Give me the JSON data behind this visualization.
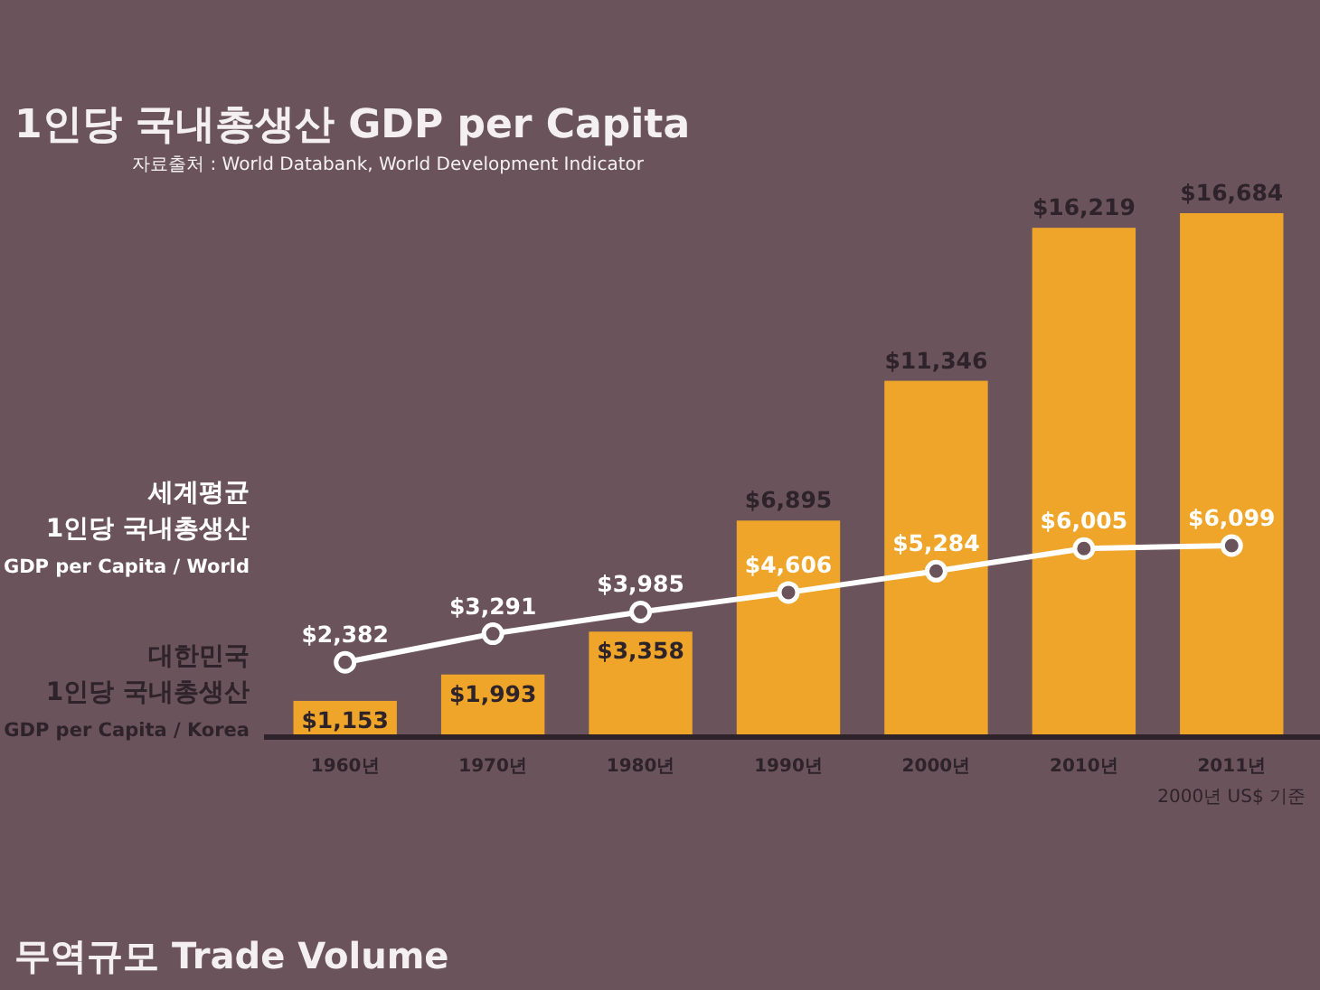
{
  "chart_data": {
    "type": "bar",
    "title": "1인당 국내총생산 GDP per Capita",
    "subtitle": "자료출처 : World Databank, World Development Indicator",
    "categories": [
      "1960년",
      "1970년",
      "1980년",
      "1990년",
      "2000년",
      "2010년",
      "2011년"
    ],
    "series": [
      {
        "name": "대한민국\n1인당 국내총생산\nGDP per Capita / Korea",
        "color": "#eea52a",
        "values": [
          1153,
          1993,
          3358,
          6895,
          11346,
          16219,
          16684
        ],
        "value_labels": [
          "$1,153",
          "$1,993",
          "$3,358",
          "$6,895",
          "$11,346",
          "$16,219",
          "$16,684"
        ]
      },
      {
        "name": "세계평균\n1인당 국내총생산\nGDP per Capita / World",
        "type": "line",
        "color": "#ffffff",
        "values": [
          2382,
          3291,
          3985,
          4606,
          5284,
          6005,
          6099
        ],
        "value_labels": [
          "$2,382",
          "$3,291",
          "$3,985",
          "$4,606",
          "$5,284",
          "$6,005",
          "$6,099"
        ]
      }
    ],
    "legend": "left",
    "marker": "circle",
    "tick_labels": "x",
    "annotations": [
      "2000년 US$ 기준",
      "무역규모 Trade Volume"
    ]
  }
}
